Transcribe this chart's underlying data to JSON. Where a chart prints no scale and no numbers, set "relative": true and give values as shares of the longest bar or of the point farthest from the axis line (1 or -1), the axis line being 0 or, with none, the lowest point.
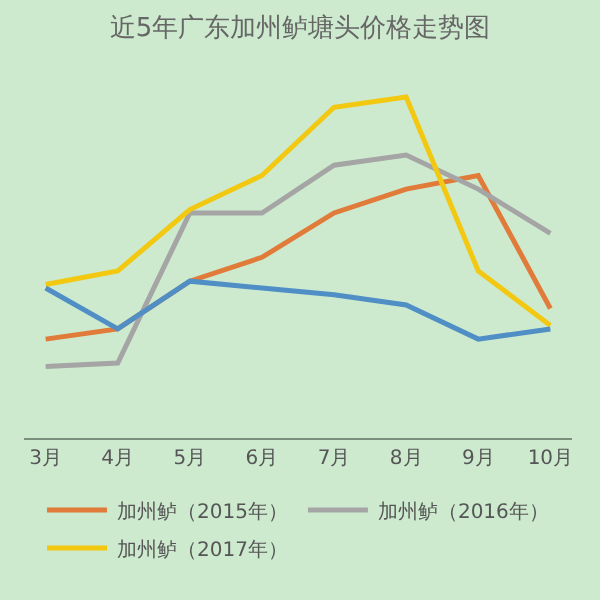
{
  "chart_data": {
    "type": "line",
    "title": "近5年广东加州鲈塘头价格走势图",
    "relative": true,
    "categories": [
      "3月",
      "4月",
      "5月",
      "6月",
      "7月",
      "8月",
      "9月",
      "10月"
    ],
    "series": [
      {
        "name": "加州鲈（2015年）",
        "color": "#e07b39",
        "values": [
          0.29,
          0.32,
          0.46,
          0.53,
          0.66,
          0.73,
          0.77,
          0.38
        ]
      },
      {
        "name": "加州鲈（2016年）",
        "color": "#a5a5a5",
        "values": [
          0.21,
          0.22,
          0.66,
          0.66,
          0.8,
          0.83,
          0.73,
          0.6
        ]
      },
      {
        "name": "加州鲈（2017年）",
        "color": "#f2c811",
        "values": [
          0.45,
          0.49,
          0.67,
          0.77,
          0.97,
          1,
          0.49,
          0.33
        ]
      },
      {
        "color": "#4f8fc6",
        "values": [
          0.44,
          0.32,
          0.46,
          0.44,
          0.42,
          0.39,
          0.29,
          0.32
        ]
      }
    ],
    "grid": false,
    "legend": "bottom",
    "marker": "none",
    "line_style": "solid"
  }
}
